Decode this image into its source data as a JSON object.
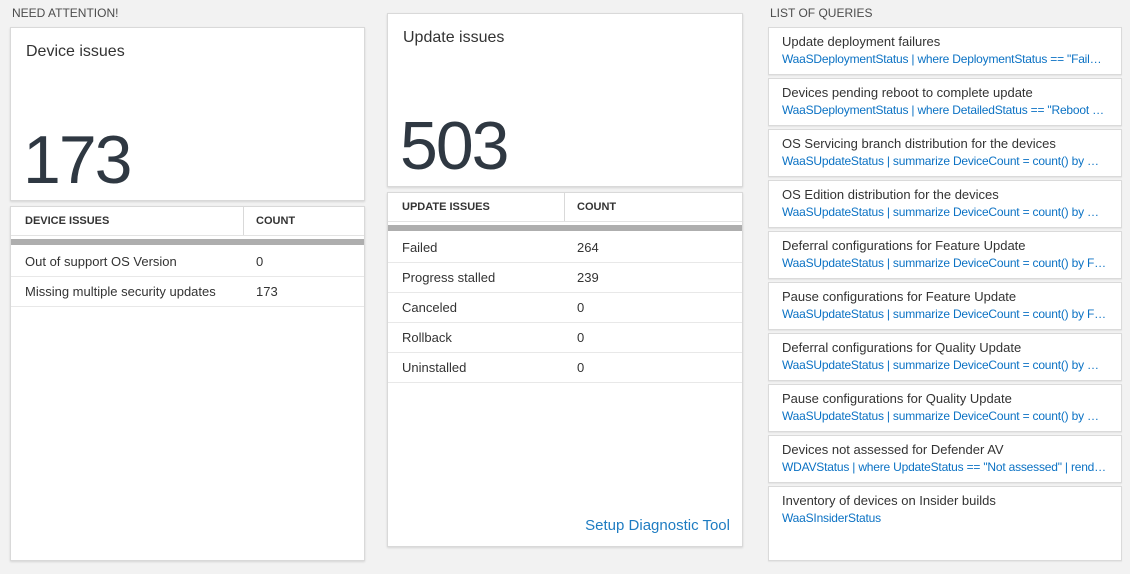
{
  "colors": {
    "page_bg": "#f2f2f2",
    "card_bg": "#ffffff",
    "card_border": "#d9d9d9",
    "text_dark": "#333333",
    "big_number": "#2f3842",
    "query_blue": "#0b72c4",
    "link_blue": "#1e7cc2",
    "scrollbar_gray": "#aeaeae"
  },
  "need_attention": {
    "header": "NEED ATTENTION!",
    "device_tile": {
      "title": "Device issues",
      "value": "173"
    },
    "device_table": {
      "col_issue": "DEVICE ISSUES",
      "col_count": "COUNT",
      "rows": [
        {
          "label": "Out of support OS Version",
          "count": "0"
        },
        {
          "label": "Missing multiple security updates",
          "count": "173"
        }
      ]
    },
    "update_tile": {
      "title": "Update issues",
      "value": "503"
    },
    "update_table": {
      "col_issue": "UPDATE ISSUES",
      "col_count": "COUNT",
      "rows": [
        {
          "label": "Failed",
          "count": "264"
        },
        {
          "label": "Progress stalled",
          "count": "239"
        },
        {
          "label": "Canceled",
          "count": "0"
        },
        {
          "label": "Rollback",
          "count": "0"
        },
        {
          "label": "Uninstalled",
          "count": "0"
        }
      ],
      "link": "Setup Diagnostic Tool"
    }
  },
  "queries": {
    "header": "LIST OF QUERIES",
    "items": [
      {
        "title": "Update deployment failures",
        "query": "WaaSDeploymentStatus | where DeploymentStatus == \"Failed\" |..."
      },
      {
        "title": "Devices pending reboot to complete update",
        "query": "WaaSDeploymentStatus | where DetailedStatus == \"Reboot pend..."
      },
      {
        "title": "OS Servicing branch distribution for the devices",
        "query": "WaaSUpdateStatus | summarize DeviceCount = count() by OSSer..."
      },
      {
        "title": "OS Edition distribution for the devices",
        "query": "WaaSUpdateStatus | summarize DeviceCount = count() by OSEdit..."
      },
      {
        "title": "Deferral configurations for Feature Update",
        "query": "WaaSUpdateStatus | summarize DeviceCount = count() by Featur..."
      },
      {
        "title": "Pause configurations for Feature Update",
        "query": "WaaSUpdateStatus | summarize DeviceCount = count() by Featur..."
      },
      {
        "title": "Deferral configurations for Quality Update",
        "query": "WaaSUpdateStatus | summarize DeviceCount = count() by Qualit..."
      },
      {
        "title": "Pause configurations for Quality Update",
        "query": "WaaSUpdateStatus | summarize DeviceCount = count() by Qualit..."
      },
      {
        "title": "Devices not assessed for Defender AV",
        "query": "WDAVStatus | where UpdateStatus == \"Not assessed\" | render ta..."
      },
      {
        "title": "Inventory of devices on Insider builds",
        "query": "WaaSInsiderStatus"
      }
    ]
  }
}
